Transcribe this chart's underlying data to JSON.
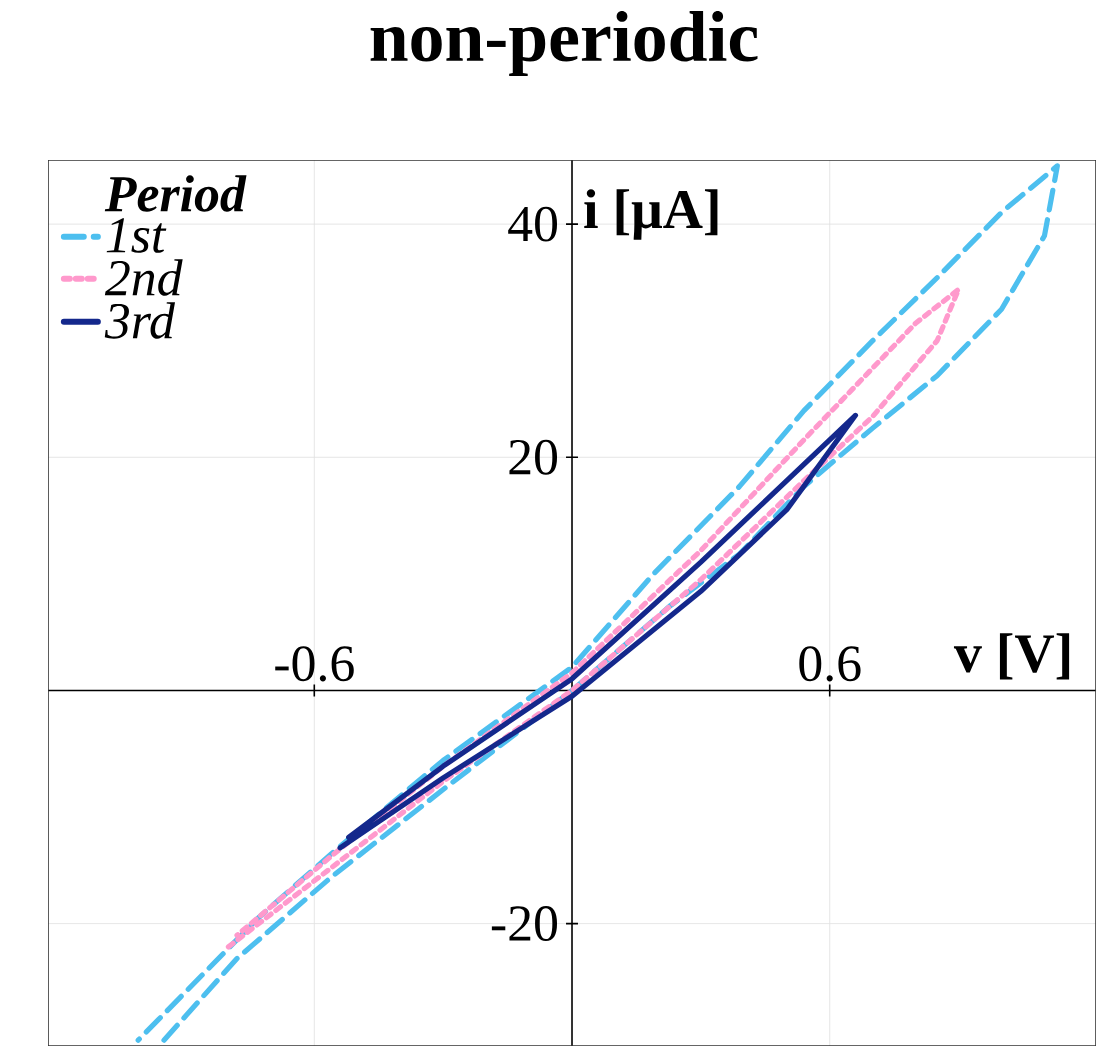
{
  "chart_data": {
    "type": "line",
    "title": "non-periodic",
    "xlabel": "v [V]",
    "ylabel": "i [μA]",
    "legend_title": "Period",
    "xlim": [
      -1.22,
      1.22
    ],
    "ylim": [
      -30.5,
      45.5
    ],
    "xticks": [
      {
        "value": -0.6,
        "label": "-0.6"
      },
      {
        "value": 0.6,
        "label": "0.6"
      }
    ],
    "yticks": [
      {
        "value": -20,
        "label": "-20"
      },
      {
        "value": 20,
        "label": "20"
      },
      {
        "value": 40,
        "label": "40"
      }
    ],
    "grid": true,
    "legend": "top left",
    "marker": "none",
    "series": [
      {
        "name": "1st",
        "color": "#4dbfef",
        "line_style": "dashed",
        "x": [
          -0.95,
          -0.78,
          -0.56,
          -0.3,
          0,
          0.23,
          0.39,
          0.54,
          0.7,
          0.85,
          1.0,
          1.1,
          1.13,
          1.0,
          0.85,
          0.7,
          0.54,
          0.39,
          0.19,
          0,
          -0.3,
          -0.56,
          -0.73,
          -1.01
        ],
        "values": [
          -30,
          -23,
          -16,
          -8.5,
          0,
          7.3,
          11.7,
          17.5,
          22.5,
          27,
          32.7,
          39,
          45,
          41,
          35.4,
          30,
          24,
          17.5,
          10,
          2,
          -6,
          -14,
          -19.5,
          -30
        ]
      },
      {
        "name": "2nd",
        "color": "#ff99cc",
        "line_style": "dotted",
        "x": [
          -0.8,
          -0.56,
          -0.3,
          0,
          0.3,
          0.54,
          0.7,
          0.85,
          0.9,
          0.8,
          0.67,
          0.54,
          0.3,
          0,
          -0.3,
          -0.56,
          -0.78
        ],
        "values": [
          -22,
          -15.2,
          -7.8,
          0,
          9.5,
          18,
          23.5,
          30,
          34.4,
          31.5,
          26.5,
          21.5,
          12,
          1.5,
          -6.5,
          -14.2,
          -21
        ]
      },
      {
        "name": "3rd",
        "color": "#14288c",
        "line_style": "solid",
        "x": [
          -0.54,
          -0.3,
          0,
          0.3,
          0.5,
          0.66,
          0.5,
          0.3,
          0,
          -0.3,
          -0.52
        ],
        "values": [
          -13.5,
          -7.5,
          -0.5,
          8.5,
          15.5,
          23.6,
          18,
          11,
          1,
          -6.5,
          -12.6
        ]
      }
    ]
  }
}
